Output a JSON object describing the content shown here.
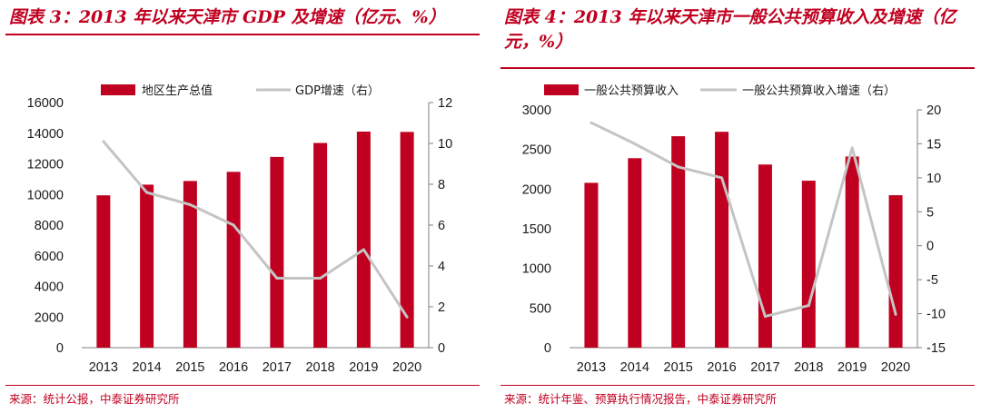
{
  "colors": {
    "bar": "#c00020",
    "line": "#c4c4c4",
    "title": "#c00020",
    "axis": "#7f7f7f"
  },
  "figures": [
    {
      "title": "图表 3：2013 年以来天津市 GDP 及增速（亿元、%）",
      "source": "来源：统计公报，中泰证券研究所",
      "chart_data": {
        "type": "bar",
        "categories": [
          "2013",
          "2014",
          "2015",
          "2016",
          "2017",
          "2018",
          "2019",
          "2020"
        ],
        "series": [
          {
            "name": "地区生产总值",
            "type": "bar",
            "axis": "left",
            "values": [
              9945,
              10640,
              10880,
              11477,
              12451,
              13363,
              14104,
              14084
            ]
          },
          {
            "name": "GDP增速（右）",
            "type": "line",
            "axis": "right",
            "values": [
              10.1,
              7.6,
              7.0,
              6.0,
              3.4,
              3.4,
              4.8,
              1.5
            ]
          }
        ],
        "ylim_left": [
          0,
          16000
        ],
        "yticks_left": [
          0,
          2000,
          4000,
          6000,
          8000,
          10000,
          12000,
          14000,
          16000
        ],
        "ylim_right": [
          0,
          12
        ],
        "yticks_right": [
          0,
          2,
          4,
          6,
          8,
          10,
          12
        ],
        "legend": "top"
      }
    },
    {
      "title": "图表 4：2013 年以来天津市一般公共预算收入及增速（亿元，%）",
      "source": "来源：统计年鉴、预算执行情况报告，中泰证券研究所",
      "chart_data": {
        "type": "bar",
        "categories": [
          "2013",
          "2014",
          "2015",
          "2016",
          "2017",
          "2018",
          "2019",
          "2020"
        ],
        "series": [
          {
            "name": "一般公共预算收入",
            "type": "bar",
            "axis": "left",
            "values": [
              2079,
              2390,
              2667,
              2723,
              2310,
              2106,
              2411,
              1923
            ]
          },
          {
            "name": "一般公共预算收入增速（右）",
            "type": "line",
            "axis": "right",
            "values": [
              18.1,
              15.0,
              11.6,
              10.0,
              -10.4,
              -8.8,
              14.4,
              -10.1
            ]
          }
        ],
        "ylim_left": [
          0,
          3000
        ],
        "yticks_left": [
          0,
          500,
          1000,
          1500,
          2000,
          2500,
          3000
        ],
        "ylim_right": [
          -15,
          20
        ],
        "yticks_right": [
          -15,
          -10,
          -5,
          0,
          5,
          10,
          15,
          20
        ],
        "legend": "top"
      }
    }
  ]
}
